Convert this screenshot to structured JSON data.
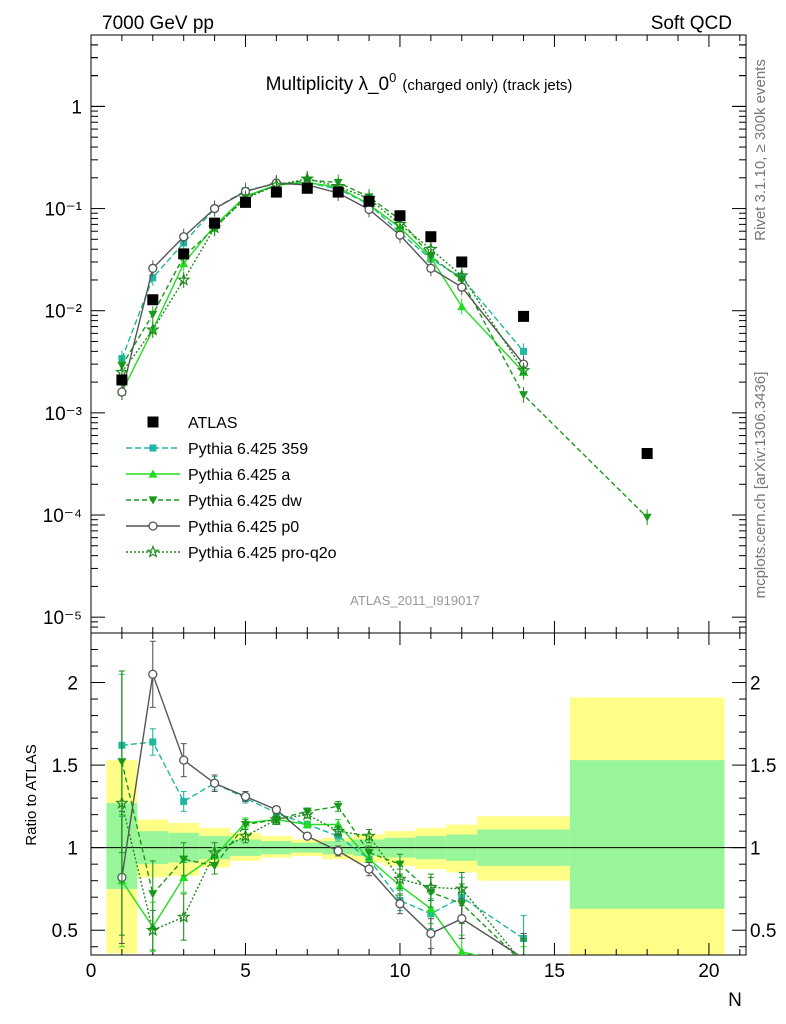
{
  "header": {
    "left": "7000 GeV pp",
    "right": "Soft QCD"
  },
  "side_text": {
    "top": "Rivet 3.1.10, ≥ 300k events",
    "bottom": "mcplots.cern.ch [arXiv:1306.3436]"
  },
  "chart_data": {
    "type": "line",
    "title_main": "Multiplicity λ_0",
    "title_sup": "0",
    "title_suffix": "(charged only) (track jets)",
    "analysis_label": "ATLAS_2011_I919017",
    "xlabel": "N",
    "ylabel_ratio": "Ratio to ATLAS",
    "xlim": [
      0,
      21.2
    ],
    "ylim_main": [
      7e-06,
      5
    ],
    "yscale_main": "log",
    "ylim_ratio": [
      0.35,
      2.3
    ],
    "x_ticks": [
      "0",
      "5",
      "10",
      "15",
      "20"
    ],
    "y_ticks_main": [
      "1",
      "10⁻¹",
      "10⁻²",
      "10⁻³",
      "10⁻⁴",
      "10⁻⁵"
    ],
    "y_ticks_ratio": [
      "2",
      "1.5",
      "1",
      "0.5"
    ],
    "legend_position": "bottom-left",
    "data": {
      "name": "ATLAS",
      "x": [
        1,
        2,
        3,
        4,
        5,
        6,
        7,
        8,
        9,
        10,
        11,
        12,
        14,
        18
      ],
      "y": [
        0.0021,
        0.0128,
        0.036,
        0.072,
        0.115,
        0.145,
        0.158,
        0.145,
        0.118,
        0.085,
        0.053,
        0.03,
        0.0088,
        0.0004
      ]
    },
    "ratio_bands": [
      {
        "x0": 0.5,
        "x1": 1.5,
        "yellow": [
          0.36,
          1.53
        ],
        "green": [
          0.75,
          1.27
        ]
      },
      {
        "x0": 1.5,
        "x1": 2.5,
        "yellow": [
          0.82,
          1.17
        ],
        "green": [
          0.9,
          1.1
        ]
      },
      {
        "x0": 2.5,
        "x1": 3.5,
        "yellow": [
          0.83,
          1.15
        ],
        "green": [
          0.91,
          1.09
        ]
      },
      {
        "x0": 3.5,
        "x1": 4.5,
        "yellow": [
          0.88,
          1.12
        ],
        "green": [
          0.93,
          1.07
        ]
      },
      {
        "x0": 4.5,
        "x1": 5.5,
        "yellow": [
          0.92,
          1.09
        ],
        "green": [
          0.95,
          1.05
        ]
      },
      {
        "x0": 5.5,
        "x1": 6.5,
        "yellow": [
          0.94,
          1.07
        ],
        "green": [
          0.96,
          1.04
        ]
      },
      {
        "x0": 6.5,
        "x1": 7.5,
        "yellow": [
          0.95,
          1.05
        ],
        "green": [
          0.97,
          1.03
        ]
      },
      {
        "x0": 7.5,
        "x1": 8.5,
        "yellow": [
          0.93,
          1.06
        ],
        "green": [
          0.96,
          1.04
        ]
      },
      {
        "x0": 8.5,
        "x1": 9.5,
        "yellow": [
          0.91,
          1.08
        ],
        "green": [
          0.95,
          1.05
        ]
      },
      {
        "x0": 9.5,
        "x1": 10.5,
        "yellow": [
          0.89,
          1.1
        ],
        "green": [
          0.94,
          1.06
        ]
      },
      {
        "x0": 10.5,
        "x1": 11.5,
        "yellow": [
          0.87,
          1.12
        ],
        "green": [
          0.93,
          1.07
        ]
      },
      {
        "x0": 11.5,
        "x1": 12.5,
        "yellow": [
          0.85,
          1.14
        ],
        "green": [
          0.92,
          1.08
        ]
      },
      {
        "x0": 12.5,
        "x1": 15.5,
        "yellow": [
          0.8,
          1.19
        ],
        "green": [
          0.89,
          1.11
        ]
      },
      {
        "x0": 15.5,
        "x1": 20.5,
        "yellow": [
          0.35,
          1.91
        ],
        "green": [
          0.63,
          1.53
        ]
      }
    ],
    "series": [
      {
        "name": "Pythia 6.425 359",
        "color": "#20b8a0",
        "dash": "6,3",
        "marker": "square",
        "x": [
          1,
          2,
          3,
          4,
          5,
          6,
          7,
          8,
          9,
          10,
          11,
          12,
          14
        ],
        "y": [
          0.0034,
          0.021,
          0.046,
          0.1,
          0.15,
          0.175,
          0.18,
          0.155,
          0.11,
          0.058,
          0.032,
          0.021,
          0.004
        ],
        "ratio": [
          1.62,
          1.64,
          1.28,
          1.39,
          1.3,
          1.21,
          1.14,
          1.07,
          0.93,
          0.68,
          0.6,
          0.7,
          0.45
        ],
        "ratio_err": [
          0.43,
          0.08,
          0.06,
          0.04,
          0.03,
          0.02,
          0.02,
          0.03,
          0.04,
          0.06,
          0.09,
          0.12,
          0.14
        ]
      },
      {
        "name": "Pythia 6.425 a",
        "color": "#22dd22",
        "dash": "",
        "marker": "triangle-up",
        "x": [
          1,
          2,
          3,
          4,
          5,
          6,
          7,
          8,
          9,
          10,
          11,
          12,
          14
        ],
        "y": [
          0.0016,
          0.0065,
          0.029,
          0.068,
          0.132,
          0.17,
          0.18,
          0.162,
          0.11,
          0.065,
          0.033,
          0.011,
          0.0025
        ],
        "ratio": [
          0.8,
          0.52,
          0.82,
          0.95,
          1.15,
          1.17,
          1.14,
          1.14,
          0.93,
          0.77,
          0.63,
          0.37,
          0.28
        ],
        "ratio_err": [
          0.4,
          0.15,
          0.09,
          0.05,
          0.03,
          0.02,
          0.02,
          0.03,
          0.04,
          0.06,
          0.09,
          0.1,
          0.12
        ]
      },
      {
        "name": "Pythia 6.425 dw",
        "color": "#1a9a1a",
        "dash": "5,3",
        "marker": "triangle-down",
        "x": [
          1,
          2,
          3,
          4,
          5,
          6,
          7,
          8,
          9,
          10,
          11,
          12,
          14,
          18
        ],
        "y": [
          0.0029,
          0.0092,
          0.034,
          0.064,
          0.13,
          0.168,
          0.19,
          0.18,
          0.13,
          0.078,
          0.034,
          0.02,
          0.0015,
          9.5e-05
        ],
        "ratio": [
          1.52,
          0.72,
          0.93,
          0.89,
          1.14,
          1.17,
          1.22,
          1.25,
          0.97,
          0.9,
          0.73,
          0.66,
          0.3
        ],
        "ratio_err": [
          0.55,
          0.2,
          0.1,
          0.05,
          0.03,
          0.02,
          0.02,
          0.03,
          0.04,
          0.06,
          0.09,
          0.12,
          0.15
        ]
      },
      {
        "name": "Pythia 6.425 p0",
        "color": "#555555",
        "dash": "",
        "marker": "circle-open",
        "x": [
          1,
          2,
          3,
          4,
          5,
          6,
          7,
          8,
          9,
          10,
          11,
          12,
          14
        ],
        "y": [
          0.0016,
          0.026,
          0.053,
          0.1,
          0.147,
          0.178,
          0.17,
          0.142,
          0.098,
          0.055,
          0.026,
          0.017,
          0.003
        ],
        "ratio": [
          0.82,
          2.05,
          1.53,
          1.39,
          1.31,
          1.23,
          1.07,
          0.98,
          0.87,
          0.66,
          0.48,
          0.57,
          0.33
        ],
        "ratio_err": [
          0.4,
          0.2,
          0.1,
          0.05,
          0.03,
          0.02,
          0.02,
          0.03,
          0.04,
          0.06,
          0.09,
          0.12,
          0.15
        ]
      },
      {
        "name": "Pythia 6.425 pro-q2o",
        "color": "#1e8a1e",
        "dash": "2,2",
        "marker": "star",
        "x": [
          1,
          2,
          3,
          4,
          5,
          6,
          7,
          8,
          9,
          10,
          11,
          12,
          14
        ],
        "y": [
          0.0025,
          0.0065,
          0.02,
          0.065,
          0.125,
          0.17,
          0.195,
          0.165,
          0.125,
          0.07,
          0.04,
          0.022,
          0.0026
        ],
        "ratio": [
          1.27,
          0.5,
          0.58,
          0.97,
          1.07,
          1.17,
          1.2,
          1.1,
          1.07,
          0.81,
          0.76,
          0.75,
          0.3
        ],
        "ratio_err": [
          0.8,
          0.12,
          0.14,
          0.06,
          0.04,
          0.03,
          0.02,
          0.03,
          0.04,
          0.06,
          0.08,
          0.1,
          0.14
        ]
      }
    ]
  }
}
